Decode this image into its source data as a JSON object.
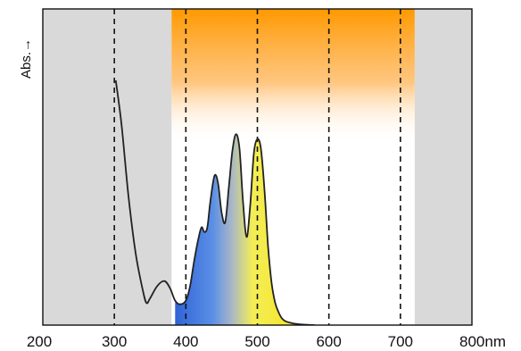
{
  "chart_data": {
    "type": "line",
    "title": "",
    "ylabel": "Abs.→",
    "xlabel": "",
    "xlim": [
      200,
      800
    ],
    "ylim": [
      0,
      1
    ],
    "x_ticks": [
      200,
      300,
      400,
      500,
      600,
      700,
      800
    ],
    "x_tick_labels": [
      "200",
      "300",
      "400",
      "500",
      "600",
      "700",
      "800nm"
    ],
    "vertical_gridlines": [
      300,
      400,
      500,
      600,
      700
    ],
    "grid": "vertical dashed",
    "shaded_regions": [
      {
        "from": 200,
        "to": 380,
        "color": "#d9d9d9"
      },
      {
        "from": 720,
        "to": 800,
        "color": "#d9d9d9"
      }
    ],
    "visible_band": {
      "from": 380,
      "to": 720,
      "top_color": "#ff9900"
    },
    "fill_gradient": [
      "#2f63d6",
      "#5b8fe6",
      "#a7b6c8",
      "#f4ee55",
      "#f6e323"
    ],
    "series": [
      {
        "x": [
          302,
          310,
          320,
          330,
          340,
          345,
          350,
          360,
          370,
          378,
          385,
          392,
          400,
          406,
          412,
          418,
          422,
          426,
          430,
          434,
          440,
          445,
          450,
          455,
          460,
          465,
          470,
          475,
          480,
          485,
          490,
          495,
          500,
          505,
          510,
          515,
          520,
          525,
          530,
          535,
          540,
          550,
          560,
          570,
          580
        ],
        "y": [
          1.0,
          0.82,
          0.52,
          0.29,
          0.14,
          0.09,
          0.11,
          0.16,
          0.18,
          0.15,
          0.1,
          0.085,
          0.1,
          0.16,
          0.27,
          0.36,
          0.4,
          0.38,
          0.4,
          0.5,
          0.61,
          0.58,
          0.46,
          0.42,
          0.56,
          0.71,
          0.78,
          0.72,
          0.5,
          0.36,
          0.49,
          0.7,
          0.76,
          0.72,
          0.55,
          0.32,
          0.17,
          0.09,
          0.05,
          0.025,
          0.015,
          0.007,
          0.003,
          0.001,
          0.0
        ]
      }
    ],
    "colors": {
      "curve": "#222222",
      "axes": "#111111",
      "gridline": "#111111"
    }
  }
}
